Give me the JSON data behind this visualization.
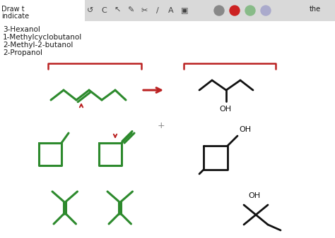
{
  "bg_color": "#ffffff",
  "text_color": "#1a1a1a",
  "green": "#2d8a2d",
  "red": "#bb2222",
  "black": "#111111",
  "gray": "#888888",
  "toolbar_color": "#d9d9d9",
  "circle_colors": [
    "#888888",
    "#cc2222",
    "#88bb88",
    "#aaaacc"
  ],
  "labels": [
    "3-Hexanol",
    "1-Methylcyclobutanol",
    "2-Methyl-2-butanol",
    "2-Propanol"
  ],
  "header1": "Draw t",
  "header2": "indicate",
  "header3": "the"
}
